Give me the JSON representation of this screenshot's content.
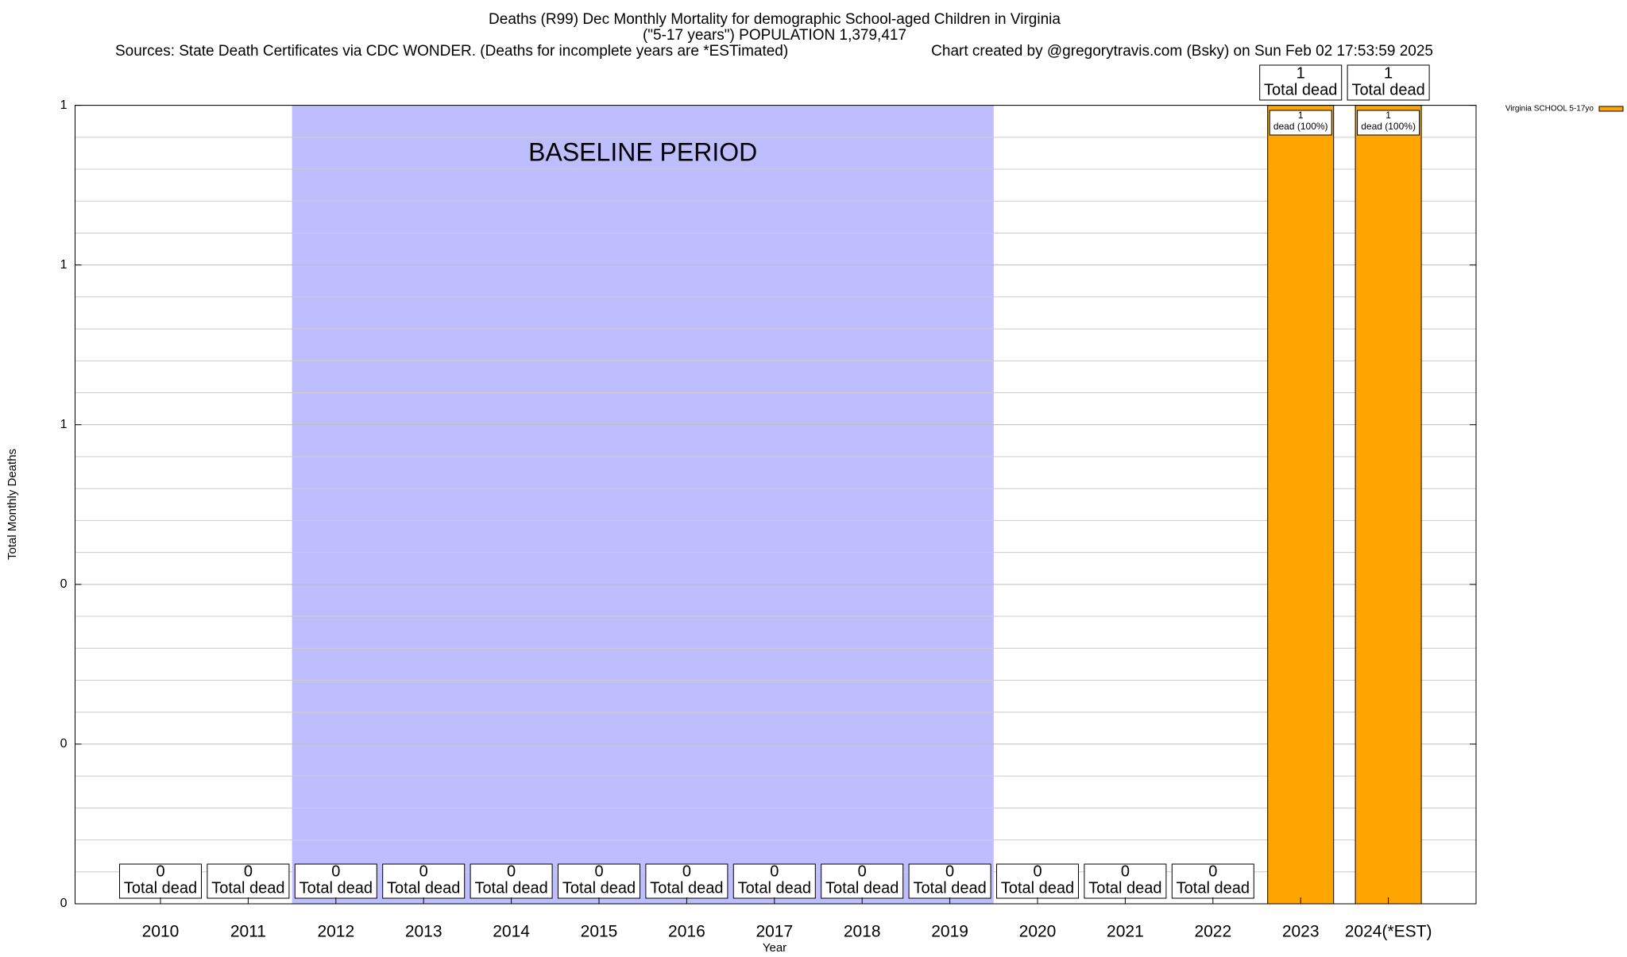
{
  "chart_data": {
    "type": "bar",
    "title": "Deaths (R99) Dec Monthly Mortality for demographic School-aged Children in Virginia",
    "subtitle": "(\"5-17 years\") POPULATION 1,379,417",
    "source": "Sources: State Death Certificates via CDC WONDER. (Deaths for incomplete years are *ESTimated)",
    "credit": "Chart created by @gregorytravis.com (Bsky) on Sun Feb 02 17:53:59 2025",
    "xlabel": "Year",
    "ylabel": "Total Monthly Deaths",
    "categories": [
      "2010",
      "2011",
      "2012",
      "2013",
      "2014",
      "2015",
      "2016",
      "2017",
      "2018",
      "2019",
      "2020",
      "2021",
      "2022",
      "2023",
      "2024(*EST)"
    ],
    "series": [
      {
        "name": "Virginia SCHOOL 5-17yo",
        "color": "#ffa500",
        "values": [
          0,
          0,
          0,
          0,
          0,
          0,
          0,
          0,
          0,
          0,
          0,
          0,
          0,
          1,
          1
        ],
        "segment_note": "dead (100%)"
      }
    ],
    "total_label": "Total dead",
    "ylim": [
      0,
      1
    ],
    "yticks": [
      0,
      {
        "value": 0.2,
        "label": "0"
      },
      {
        "value": 0.4,
        "label": "0"
      },
      {
        "value": 0.6,
        "label": "1"
      },
      {
        "value": 0.8,
        "label": "1"
      },
      1
    ],
    "y_minor_ticks": [
      0.04,
      0.08,
      0.12,
      0.16,
      0.24,
      0.28,
      0.32,
      0.36,
      0.44,
      0.48,
      0.52,
      0.56,
      0.64,
      0.68,
      0.72,
      0.76,
      0.84,
      0.88,
      0.92,
      0.96
    ],
    "grid": true,
    "legend": "top-right",
    "baseline": {
      "label": "BASELINE PERIOD",
      "from": "2012",
      "to": "2019",
      "color": "#bebefe"
    }
  }
}
